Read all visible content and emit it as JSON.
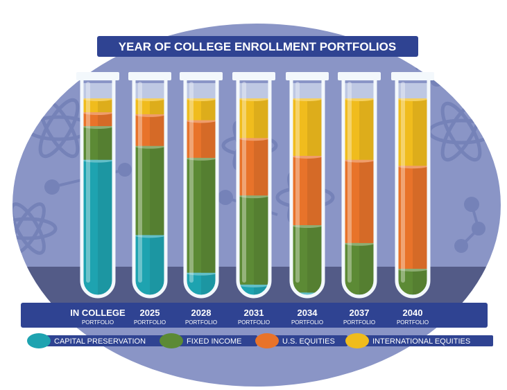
{
  "chart_data": {
    "type": "stacked-bar",
    "title": "YEAR OF COLLEGE ENROLLMENT PORTFOLIOS",
    "unit": "percent",
    "ylim": [
      0,
      100
    ],
    "categories": [
      {
        "main": "IN COLLEGE",
        "sub": "PORTFOLIO"
      },
      {
        "main": "2025",
        "sub": "PORTFOLIO"
      },
      {
        "main": "2028",
        "sub": "PORTFOLIO"
      },
      {
        "main": "2031",
        "sub": "PORTFOLIO"
      },
      {
        "main": "2034",
        "sub": "PORTFOLIO"
      },
      {
        "main": "2037",
        "sub": "PORTFOLIO"
      },
      {
        "main": "2040",
        "sub": "PORTFOLIO"
      }
    ],
    "series": [
      {
        "name": "CAPITAL PRESERVATION",
        "color": "#1ea3b0",
        "values": [
          69,
          31,
          12,
          6,
          2,
          1,
          1
        ]
      },
      {
        "name": "FIXED INCOME",
        "color": "#5c8a35",
        "values": [
          17,
          45,
          58,
          45,
          34,
          26,
          13
        ]
      },
      {
        "name": "U.S. EQUITIES",
        "color": "#e8732a",
        "values": [
          7,
          16,
          19,
          29,
          35,
          42,
          52
        ]
      },
      {
        "name": "INTERNATIONAL EQUITIES",
        "color": "#f0bc1d",
        "values": [
          7,
          8,
          11,
          20,
          29,
          31,
          34
        ]
      }
    ],
    "legend_position": "bottom",
    "grid": false
  }
}
